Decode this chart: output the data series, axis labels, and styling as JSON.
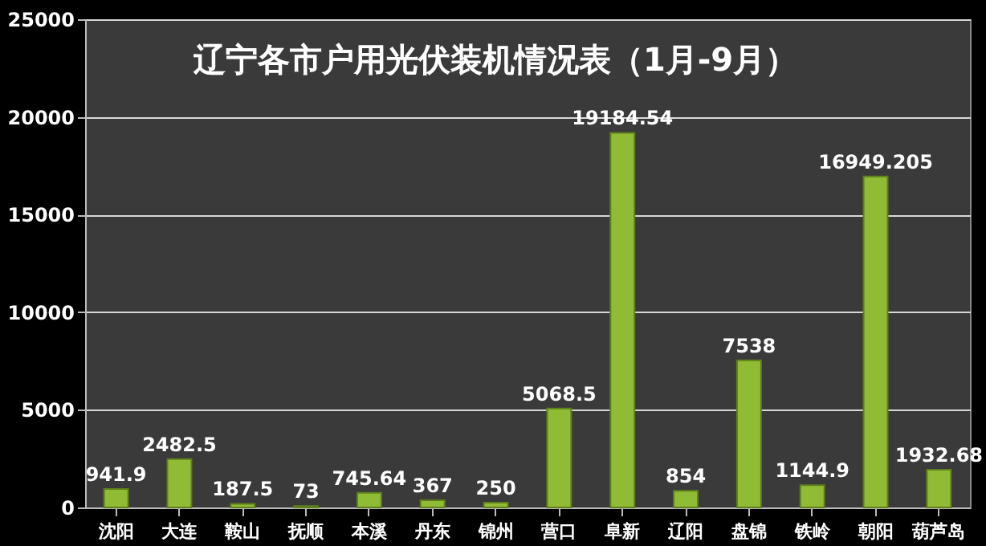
{
  "chart_data": {
    "type": "bar",
    "title": "辽宁各市户用光伏装机情况表（1月-9月）",
    "categories": [
      "沈阳",
      "大连",
      "鞍山",
      "抚顺",
      "本溪",
      "丹东",
      "锦州",
      "营口",
      "阜新",
      "辽阳",
      "盘锦",
      "铁岭",
      "朝阳",
      "葫芦岛"
    ],
    "values": [
      941.9,
      2482.5,
      187.5,
      73,
      745.64,
      367,
      250,
      5068.5,
      19184.54,
      854,
      7538,
      1144.9,
      16949.205,
      1932.68
    ],
    "color": "#8fbc34",
    "ylim": [
      0,
      25000
    ],
    "yticks": [
      0,
      5000,
      10000,
      15000,
      20000,
      25000
    ],
    "grid": "y",
    "data_labels": true
  }
}
